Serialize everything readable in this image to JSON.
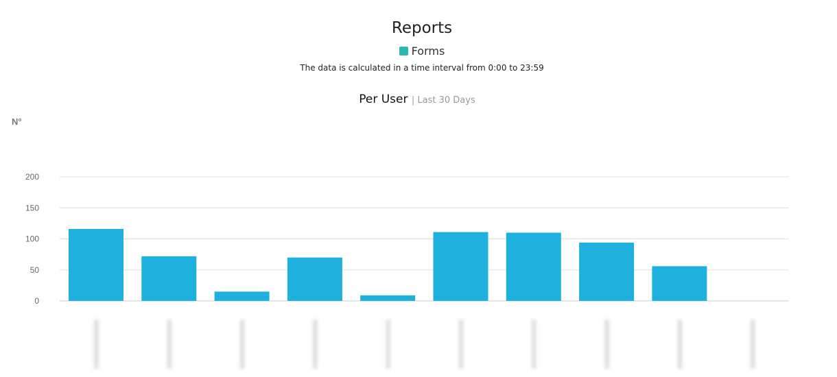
{
  "header": {
    "title": "Reports",
    "legend_label": "Forms",
    "legend_color": "#2bb7b3",
    "note": "The data is calculated in a time interval from 0:00 to 23:59"
  },
  "chart_data": {
    "type": "bar",
    "title": "Per User",
    "subtitle": "Last 30 Days",
    "ylabel": "N°",
    "xlabel": "",
    "ylim": [
      0,
      200
    ],
    "yticks": [
      0,
      50,
      100,
      150,
      200
    ],
    "grid": true,
    "bar_color": "#1eb1de",
    "categories": [
      "",
      "",
      "",
      "",
      "",
      "",
      "",
      "",
      "",
      ""
    ],
    "values": [
      116,
      72,
      15,
      70,
      9,
      111,
      110,
      94,
      56,
      0
    ]
  }
}
